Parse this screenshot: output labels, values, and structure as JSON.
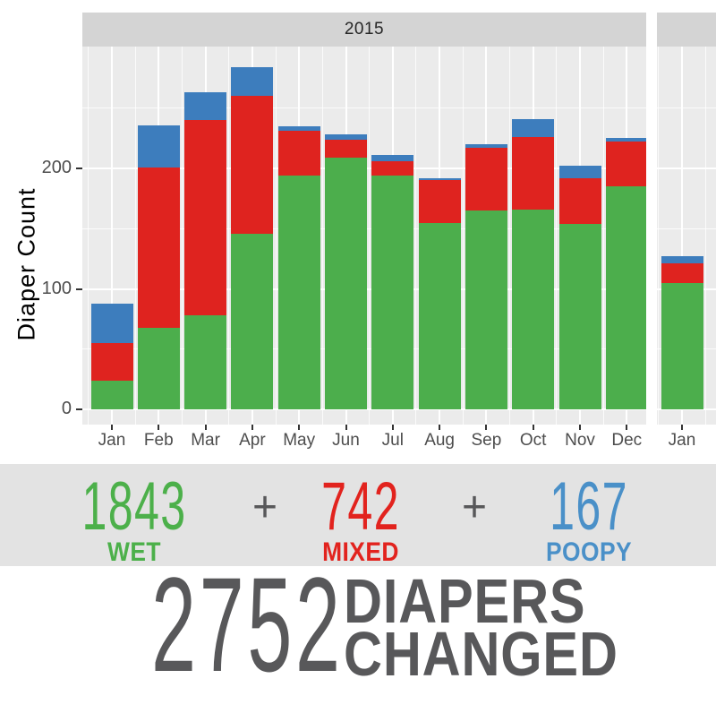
{
  "colors": {
    "wet_bar": "#4cae4c",
    "mixed_bar": "#df231f",
    "poopy_bar": "#3d7dbd",
    "wet_text": "#4cb04a",
    "mixed_text": "#e2231e",
    "poopy_text": "#4a90c8",
    "plus_text": "#58585a",
    "total_text": "#58585a",
    "panel_bg": "#ebebeb",
    "strip_bg": "#d4d4d4",
    "band_bg": "#e3e3e3",
    "gridline": "#ffffff",
    "axis_text": "#4d4d4d"
  },
  "chart_data": {
    "type": "bar",
    "stacked": true,
    "ylabel": "Diaper Count",
    "yticks": [
      0,
      100,
      200
    ],
    "ytick_labels": [
      "0",
      "100",
      "200"
    ],
    "ylim": [
      0,
      300
    ],
    "grid": "white major/minor gridlines on gray panel",
    "legend": "none",
    "facets": [
      {
        "label": "2015",
        "categories": [
          "Jan",
          "Feb",
          "Mar",
          "Apr",
          "May",
          "Jun",
          "Jul",
          "Aug",
          "Sep",
          "Oct",
          "Nov",
          "Dec"
        ],
        "series": [
          {
            "name": "WET",
            "color": "#4cae4c",
            "values": [
              24,
              68,
              78,
              146,
              194,
              209,
              194,
              155,
              165,
              166,
              154,
              185
            ]
          },
          {
            "name": "MIXED",
            "color": "#df231f",
            "values": [
              31,
              133,
              162,
              114,
              37,
              15,
              12,
              35,
              52,
              60,
              38,
              37
            ]
          },
          {
            "name": "POOPY",
            "color": "#3d7dbd",
            "values": [
              33,
              35,
              23,
              24,
              4,
              4,
              5,
              2,
              3,
              15,
              10,
              3
            ]
          }
        ],
        "stack_totals": [
          88,
          236,
          263,
          284,
          235,
          228,
          211,
          192,
          220,
          241,
          202,
          225
        ]
      },
      {
        "label": "",
        "categories": [
          "Jan"
        ],
        "series": [
          {
            "name": "WET",
            "color": "#4cae4c",
            "values": [
              105
            ]
          },
          {
            "name": "MIXED",
            "color": "#df231f",
            "values": [
              16
            ]
          },
          {
            "name": "POOPY",
            "color": "#3d7dbd",
            "values": [
              6
            ]
          }
        ],
        "stack_totals": [
          127
        ]
      }
    ]
  },
  "summary": {
    "plus": "+",
    "items": [
      {
        "value": "1843",
        "label": "WET",
        "color": "#4cb04a"
      },
      {
        "value": "742",
        "label": "MIXED",
        "color": "#e2231e"
      },
      {
        "value": "167",
        "label": "POOPY",
        "color": "#4a90c8"
      }
    ]
  },
  "total": {
    "value": "2752",
    "label_line1": "DIAPERS",
    "label_line2": "CHANGED"
  }
}
